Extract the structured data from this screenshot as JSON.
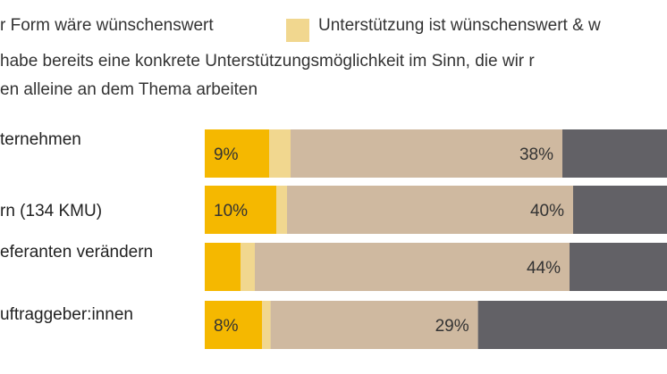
{
  "legend": {
    "row1_text_a": "r Form wäre wünschenswert",
    "row1_text_b": "Unterstützung ist wünschenswert & w",
    "row2_text": "habe bereits eine konkrete Unterstützungsmöglichkeit im Sinn, die wir r",
    "row3_text": "en alleine an dem Thema arbeiten"
  },
  "chart_data": {
    "type": "bar",
    "orientation": "horizontal",
    "stacked": true,
    "title": "",
    "xlabel": "",
    "ylabel": "",
    "categories": [
      "ternehmen",
      "rn (134 KMU)",
      "eferanten verändern",
      "uftraggeber:innen"
    ],
    "series": [
      {
        "color": "#f5b800",
        "values": [
          9,
          10,
          5,
          8
        ],
        "labels": [
          "9%",
          "10%",
          "",
          "8%"
        ]
      },
      {
        "color": "#f1d78f",
        "values": [
          3,
          1.5,
          2,
          1.2
        ],
        "labels": [
          "",
          "",
          "",
          ""
        ]
      },
      {
        "color": "#cfb9a0",
        "values": [
          38,
          40,
          44,
          29
        ],
        "labels": [
          "38%",
          "40%",
          "44%",
          "29%"
        ]
      },
      {
        "color": "#626166",
        "values": [
          20,
          17,
          17,
          35
        ],
        "labels": [
          "",
          "",
          "",
          ""
        ]
      }
    ],
    "grid": false
  }
}
